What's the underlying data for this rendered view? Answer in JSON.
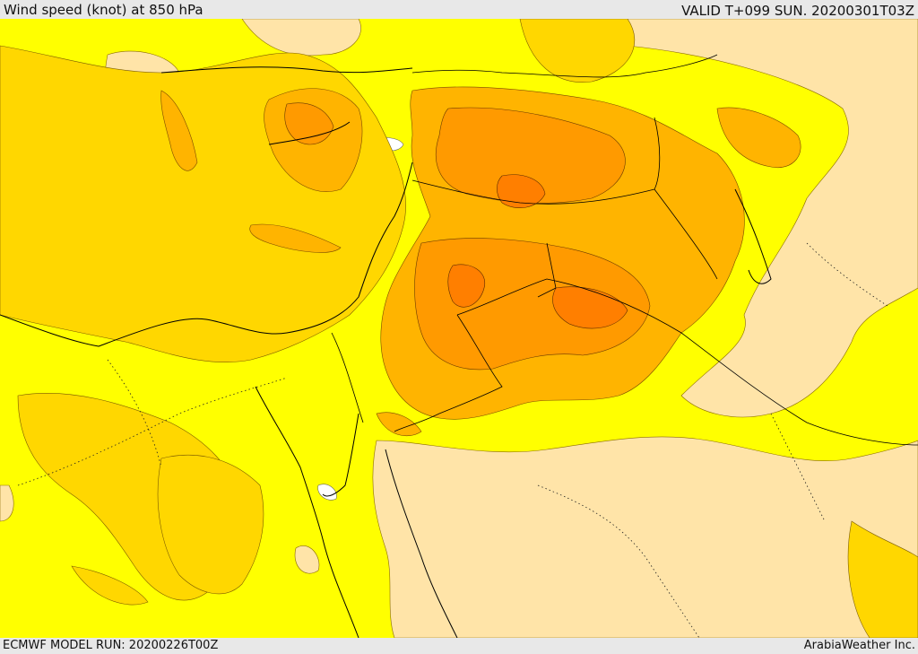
{
  "header": {
    "title": "Wind speed (knot) at 850 hPa",
    "valid": "VALID T+099 SUN. 20200301T03Z"
  },
  "footer": {
    "model_run": "ECMWF MODEL RUN: 20200226T00Z",
    "credit": "ArabiaWeather Inc."
  },
  "map": {
    "variable": "wind speed",
    "level": "850 hPa",
    "units": "knot",
    "colors": {
      "calm": "#ffffff",
      "light": "#ffffcc",
      "low": "#ffe4a8",
      "base": "#ffff00",
      "moderate": "#ffd700",
      "strong": "#ffb400",
      "very_strong": "#ff9a00",
      "max": "#ff7f00",
      "border": "#000000"
    }
  }
}
